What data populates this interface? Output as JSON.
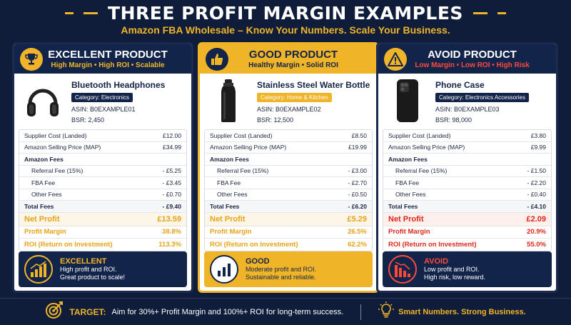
{
  "header": {
    "title": "THREE PROFIT MARGIN EXAMPLES",
    "subtitle": "Amazon FBA Wholesale – Know Your Numbers. Scale Your Business."
  },
  "colors": {
    "navy": "#13244a",
    "gold": "#f0b429",
    "red": "#e0261b"
  },
  "cards": [
    {
      "title": "EXCELLENT PRODUCT",
      "tagline": "High Margin • High ROI • Scalable",
      "icon": "trophy-icon",
      "product_name": "Bluetooth Headphones",
      "category": "Category: Electronics",
      "asin": "ASIN: B0EXAMPLE01",
      "bsr": "BSR: 2,450",
      "rows": {
        "supplier_cost_label": "Supplier Cost (Landed)",
        "supplier_cost": "£12.00",
        "selling_price_label": "Amazon Selling Price (MAP)",
        "selling_price": "£34.99",
        "fees_heading": "Amazon Fees",
        "referral_label": "Referral Fee (15%)",
        "referral": "- £5.25",
        "fba_label": "FBA Fee",
        "fba": "- £3.45",
        "other_label": "Other Fees",
        "other": "- £0.70",
        "total_label": "Total Fees",
        "total": "- £9.40",
        "net_label": "Net Profit",
        "net": "£13.59",
        "margin_label": "Profit Margin",
        "margin": "38.8%",
        "roi_label": "ROI (Return on Investment)",
        "roi": "113.3%"
      },
      "verdict": {
        "title": "EXCELLENT",
        "line1": "High profit and ROI.",
        "line2": "Great product to scale!"
      }
    },
    {
      "title": "GOOD PRODUCT",
      "tagline": "Healthy Margin • Solid ROI",
      "icon": "thumbs-up-icon",
      "product_name": "Stainless Steel Water Bottle",
      "category": "Category: Home & Kitchen",
      "asin": "ASIN: B0EXAMPLE02",
      "bsr": "BSR: 12,500",
      "rows": {
        "supplier_cost_label": "Supplier Cost (Landed)",
        "supplier_cost": "£8.50",
        "selling_price_label": "Amazon Selling Price (MAP)",
        "selling_price": "£19.99",
        "fees_heading": "Amazon Fees",
        "referral_label": "Referral Fee (15%)",
        "referral": "- £3.00",
        "fba_label": "FBA Fee",
        "fba": "- £2.70",
        "other_label": "Other Fees",
        "other": "- £0.50",
        "total_label": "Total Fees",
        "total": "- £6.20",
        "net_label": "Net Profit",
        "net": "£5.29",
        "margin_label": "Profit Margin",
        "margin": "26.5%",
        "roi_label": "ROI (Return on Investment)",
        "roi": "62.2%"
      },
      "verdict": {
        "title": "GOOD",
        "line1": "Moderate profit and ROI.",
        "line2": "Sustainable and reliable."
      }
    },
    {
      "title": "AVOID PRODUCT",
      "tagline": "Low Margin • Low ROI • High Risk",
      "icon": "warning-icon",
      "product_name": "Phone Case",
      "category": "Category: Electronics Accessories",
      "asin": "ASIN: B0EXAMPLE03",
      "bsr": "BSR: 98,000",
      "rows": {
        "supplier_cost_label": "Supplier Cost (Landed)",
        "supplier_cost": "£3.80",
        "selling_price_label": "Amazon Selling Price (MAP)",
        "selling_price": "£9.99",
        "fees_heading": "Amazon Fees",
        "referral_label": "Referral Fee (15%)",
        "referral": "- £1.50",
        "fba_label": "FBA Fee",
        "fba": "- £2.20",
        "other_label": "Other Fees",
        "other": "- £0.40",
        "total_label": "Total Fees",
        "total": "- £4.10",
        "net_label": "Net Profit",
        "net": "£2.09",
        "margin_label": "Profit Margin",
        "margin": "20.9%",
        "roi_label": "ROI (Return on Investment)",
        "roi": "55.0%"
      },
      "verdict": {
        "title": "AVOID",
        "line1": "Low profit and ROI.",
        "line2": "High risk, low reward."
      }
    }
  ],
  "footer": {
    "target_label": "TARGET:",
    "target_text": "Aim for 30%+ Profit Margin and 100%+ ROI for long-term success.",
    "slogan": "Smart Numbers. Strong Business."
  }
}
